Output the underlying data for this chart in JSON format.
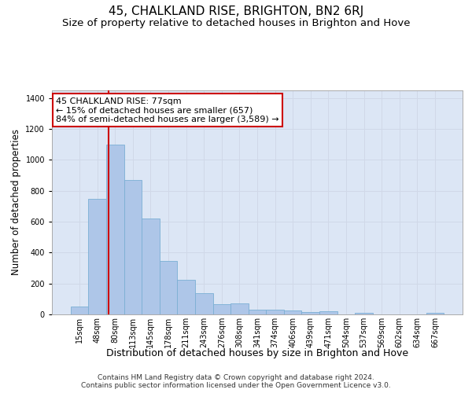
{
  "title": "45, CHALKLAND RISE, BRIGHTON, BN2 6RJ",
  "subtitle": "Size of property relative to detached houses in Brighton and Hove",
  "xlabel": "Distribution of detached houses by size in Brighton and Hove",
  "ylabel": "Number of detached properties",
  "footer_line1": "Contains HM Land Registry data © Crown copyright and database right 2024.",
  "footer_line2": "Contains public sector information licensed under the Open Government Licence v3.0.",
  "categories": [
    "15sqm",
    "48sqm",
    "80sqm",
    "113sqm",
    "145sqm",
    "178sqm",
    "211sqm",
    "243sqm",
    "276sqm",
    "308sqm",
    "341sqm",
    "374sqm",
    "406sqm",
    "439sqm",
    "471sqm",
    "504sqm",
    "537sqm",
    "569sqm",
    "602sqm",
    "634sqm",
    "667sqm"
  ],
  "values": [
    50,
    750,
    1100,
    870,
    620,
    345,
    225,
    135,
    65,
    72,
    32,
    32,
    25,
    15,
    18,
    0,
    12,
    0,
    0,
    0,
    12
  ],
  "bar_color": "#aec6e8",
  "bar_edge_color": "#7bafd4",
  "bar_linewidth": 0.6,
  "grid_color": "#d0d8e8",
  "plot_bg_color": "#dce6f5",
  "annotation_text": "45 CHALKLAND RISE: 77sqm\n← 15% of detached houses are smaller (657)\n84% of semi-detached houses are larger (3,589) →",
  "annotation_box_color": "#ffffff",
  "annotation_border_color": "#cc0000",
  "red_line_x": 1.62,
  "ylim": [
    0,
    1450
  ],
  "yticks": [
    0,
    200,
    400,
    600,
    800,
    1000,
    1200,
    1400
  ],
  "title_fontsize": 11,
  "subtitle_fontsize": 9.5,
  "xlabel_fontsize": 9,
  "ylabel_fontsize": 8.5,
  "tick_fontsize": 7,
  "footer_fontsize": 6.5,
  "annot_fontsize": 8
}
